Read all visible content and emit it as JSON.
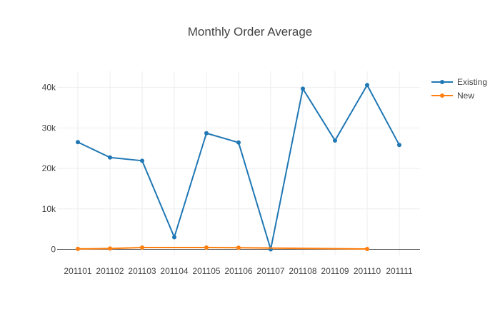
{
  "chart_data": {
    "type": "line",
    "title": "Monthly Order Average",
    "xlabel": "",
    "ylabel": "",
    "categories": [
      "201101",
      "201102",
      "201103",
      "201104",
      "201105",
      "201106",
      "201107",
      "201108",
      "201109",
      "201110",
      "201111"
    ],
    "ylim": [
      -1500,
      44000
    ],
    "yticks": [
      0,
      10000,
      20000,
      30000,
      40000
    ],
    "ytick_labels": [
      "0",
      "10k",
      "20k",
      "30k",
      "40k"
    ],
    "grid": true,
    "legend_position": "top-right",
    "series": [
      {
        "name": "Existing",
        "color": "#1f77b4",
        "values": [
          26500,
          22700,
          21900,
          3000,
          28700,
          26400,
          0,
          39700,
          26900,
          40600,
          25800
        ]
      },
      {
        "name": "New",
        "color": "#ff7f0e",
        "values": [
          100,
          200,
          450,
          null,
          450,
          400,
          null,
          null,
          null,
          80,
          null
        ]
      }
    ]
  }
}
